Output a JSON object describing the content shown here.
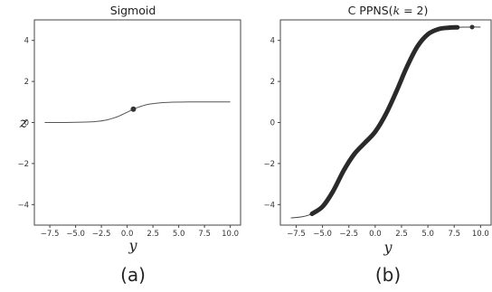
{
  "chart_data": [
    {
      "type": "line",
      "title": "Sigmoid",
      "xlabel": "y",
      "ylabel": "z",
      "xlim": [
        -9,
        11
      ],
      "ylim": [
        -5,
        5
      ],
      "xticks": [
        -7.5,
        -5.0,
        -2.5,
        0.0,
        2.5,
        5.0,
        7.5,
        10.0
      ],
      "yticks": [
        -4,
        -2,
        0,
        2,
        4
      ],
      "xtick_labels": [
        "−7.5",
        "−5.0",
        "−2.5",
        "0.0",
        "2.5",
        "5.0",
        "7.5",
        "10.0"
      ],
      "ytick_labels": [
        "−4",
        "−2",
        "0",
        "2",
        "4"
      ],
      "grid": false,
      "series": [
        {
          "x": [
            -8.0,
            -6.0,
            -4.0,
            -3.0,
            -2.0,
            -1.0,
            -0.5,
            0.0,
            0.5,
            1.0,
            2.0,
            3.0,
            4.0,
            6.0,
            8.0,
            10.0
          ],
          "y": [
            0.0,
            0.0,
            0.02,
            0.05,
            0.12,
            0.27,
            0.38,
            0.5,
            0.62,
            0.73,
            0.88,
            0.95,
            0.98,
            1.0,
            1.0,
            1.0
          ]
        }
      ],
      "marker": {
        "x": 0.6,
        "y": 0.65
      },
      "subplot_label": "(a)"
    },
    {
      "type": "line",
      "title": "C PPNS(",
      "title_k": "k",
      "title_end": " = 2)",
      "xlabel": "y",
      "ylabel": "",
      "xlim": [
        -9,
        11
      ],
      "ylim": [
        -5,
        5
      ],
      "xticks": [
        -7.5,
        -5.0,
        -2.5,
        0.0,
        2.5,
        5.0,
        7.5,
        10.0
      ],
      "yticks": [
        -4,
        -2,
        0,
        2,
        4
      ],
      "xtick_labels": [
        "−7.5",
        "−5.0",
        "−2.5",
        "0.0",
        "2.5",
        "5.0",
        "7.5",
        "10.0"
      ],
      "ytick_labels": [
        "−4",
        "−2",
        "0",
        "2",
        "4"
      ],
      "grid": false,
      "series": [
        {
          "x": [
            -8.0,
            -7.0,
            -6.0,
            -5.0,
            -4.0,
            -3.0,
            -2.0,
            -1.0,
            0.0,
            1.0,
            2.0,
            3.0,
            4.0,
            5.0,
            6.0,
            7.0,
            8.0,
            9.0,
            10.0
          ],
          "y": [
            -4.65,
            -4.6,
            -4.45,
            -4.1,
            -3.35,
            -2.35,
            -1.55,
            -1.0,
            -0.45,
            0.4,
            1.5,
            2.7,
            3.7,
            4.3,
            4.55,
            4.62,
            4.64,
            4.65,
            4.65
          ]
        }
      ],
      "thick_range": [
        -6.0,
        7.8
      ],
      "marker": {
        "x": 9.2,
        "y": 4.65
      },
      "subplot_label": "(b)"
    }
  ]
}
